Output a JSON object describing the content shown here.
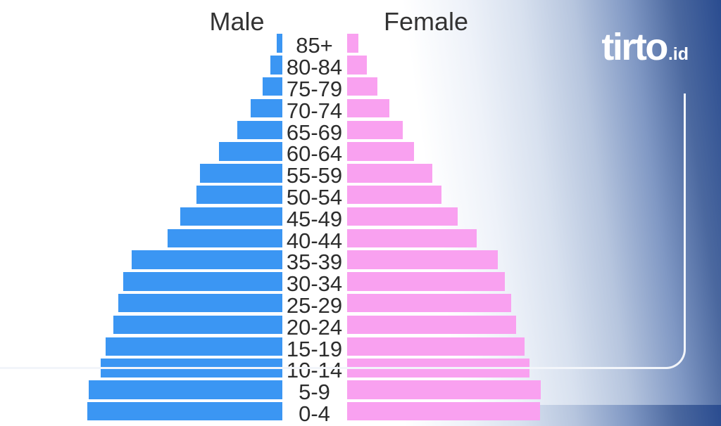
{
  "header": {
    "male_label": "Male",
    "female_label": "Female"
  },
  "logo": {
    "brand": "tirto",
    "suffix": ".id"
  },
  "colors": {
    "male_bar": "#3B96F3",
    "female_bar": "#F9A1F0",
    "label_text": "#2D2D2D",
    "frame_line": "#F2F5FA",
    "gradient_dark": "#2A4C90"
  },
  "chart_data": {
    "type": "bar",
    "subtype": "population-pyramid",
    "orientation": "horizontal",
    "title": "",
    "legend_entries": [
      "Male",
      "Female"
    ],
    "legend_position": "top",
    "axis": "none (no numeric scale shown)",
    "value_units": "relative bar length in screen pixels",
    "categories": [
      "85+",
      "80-84",
      "75-79",
      "70-74",
      "65-69",
      "60-64",
      "55-59",
      "50-54",
      "45-49",
      "40-44",
      "35-39",
      "30-34",
      "25-29",
      "20-24",
      "15-19",
      "10-14",
      "5-9",
      "0-4"
    ],
    "series": [
      {
        "name": "Male",
        "side": "left",
        "color": "#3B96F3",
        "values": [
          8,
          17,
          28,
          45,
          64,
          90,
          117,
          122,
          145,
          163,
          214,
          226,
          233,
          240,
          251,
          258,
          275,
          277
        ]
      },
      {
        "name": "Female",
        "side": "right",
        "color": "#F9A1F0",
        "values": [
          16,
          28,
          43,
          60,
          79,
          95,
          121,
          134,
          157,
          184,
          214,
          224,
          233,
          240,
          252,
          259,
          275,
          274
        ]
      }
    ]
  }
}
